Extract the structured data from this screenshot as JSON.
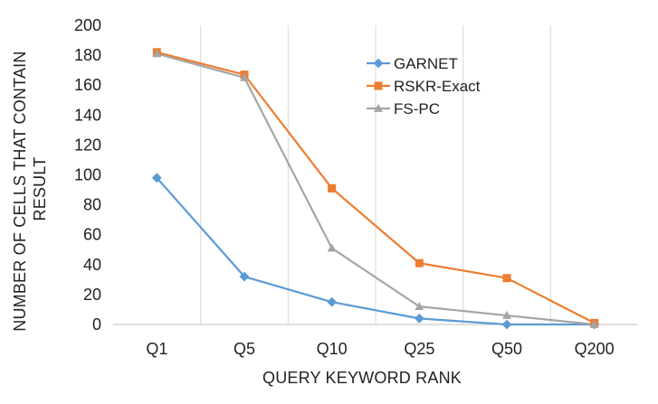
{
  "chart_data": {
    "type": "line",
    "categories": [
      "Q1",
      "Q5",
      "Q10",
      "Q25",
      "Q50",
      "Q200"
    ],
    "series": [
      {
        "name": "GARNET",
        "color": "#5b9bd5",
        "marker": "diamond",
        "values": [
          98,
          32,
          15,
          4,
          0,
          0
        ]
      },
      {
        "name": "RSKR-Exact",
        "color": "#ed7d31",
        "marker": "square",
        "values": [
          182,
          167,
          91,
          41,
          31,
          1
        ]
      },
      {
        "name": "FS-PC",
        "color": "#a5a5a5",
        "marker": "triangle",
        "values": [
          181,
          165,
          51,
          12,
          6,
          0
        ]
      }
    ],
    "yticks": [
      "0",
      "20",
      "40",
      "60",
      "80",
      "100",
      "120",
      "140",
      "160",
      "180",
      "200"
    ],
    "ylim": [
      0,
      200
    ],
    "xlabel": "QUERY KEYWORD RANK",
    "ylabel_lines": [
      "NUMBER OF CELLS THAT CONTAIN",
      "RESULT"
    ],
    "grid": "vertical",
    "legend_position": "top-right"
  }
}
